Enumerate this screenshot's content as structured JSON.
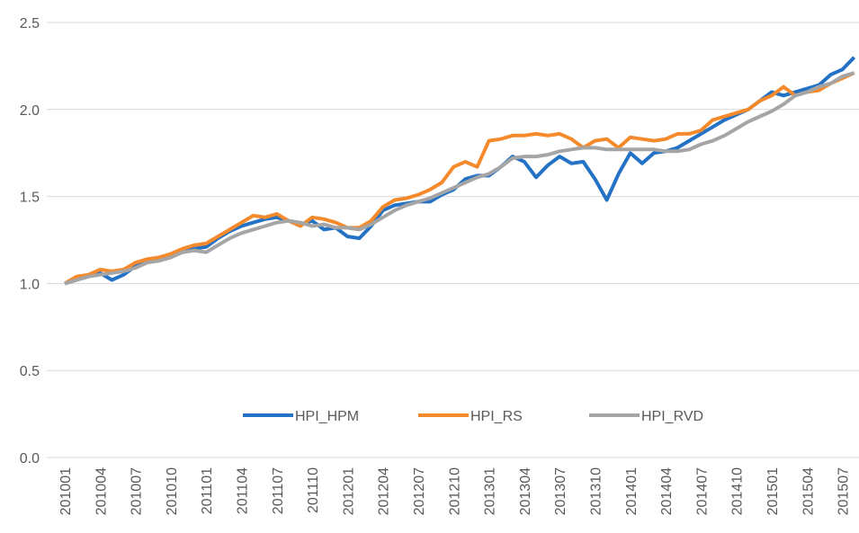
{
  "chart_data": {
    "type": "line",
    "categories": [
      "201001",
      null,
      null,
      "201004",
      null,
      null,
      "201007",
      null,
      null,
      "201010",
      null,
      null,
      "201101",
      null,
      null,
      "201104",
      null,
      null,
      "201107",
      null,
      null,
      "201110",
      null,
      null,
      "201201",
      null,
      null,
      "201204",
      null,
      null,
      "201207",
      null,
      null,
      "201210",
      null,
      null,
      "201301",
      null,
      null,
      "201304",
      null,
      null,
      "201307",
      null,
      null,
      "201310",
      null,
      null,
      "201401",
      null,
      null,
      "201404",
      null,
      null,
      "201407",
      null,
      null,
      "201410",
      null,
      null,
      "201501",
      null,
      null,
      "201504",
      null,
      null,
      "201507",
      null
    ],
    "series": [
      {
        "name": "HPI_HPM",
        "color": "#2372c5",
        "values": [
          1.0,
          1.02,
          1.04,
          1.06,
          1.02,
          1.05,
          1.1,
          1.13,
          1.14,
          1.16,
          1.18,
          1.2,
          1.21,
          1.26,
          1.3,
          1.33,
          1.35,
          1.37,
          1.38,
          1.36,
          1.34,
          1.36,
          1.31,
          1.32,
          1.27,
          1.26,
          1.33,
          1.42,
          1.45,
          1.46,
          1.47,
          1.47,
          1.51,
          1.54,
          1.6,
          1.62,
          1.62,
          1.67,
          1.73,
          1.7,
          1.61,
          1.68,
          1.73,
          1.69,
          1.7,
          1.6,
          1.48,
          1.63,
          1.75,
          1.69,
          1.75,
          1.76,
          1.78,
          1.82,
          1.86,
          1.9,
          1.94,
          1.97,
          2.0,
          2.05,
          2.1,
          2.08,
          2.1,
          2.12,
          2.14,
          2.2,
          2.23,
          2.3
        ]
      },
      {
        "name": "HPI_RS",
        "color": "#f58a2c",
        "values": [
          1.0,
          1.04,
          1.05,
          1.08,
          1.07,
          1.08,
          1.12,
          1.14,
          1.15,
          1.17,
          1.2,
          1.22,
          1.23,
          1.27,
          1.31,
          1.35,
          1.39,
          1.38,
          1.4,
          1.36,
          1.33,
          1.38,
          1.37,
          1.35,
          1.32,
          1.32,
          1.36,
          1.44,
          1.48,
          1.49,
          1.51,
          1.54,
          1.58,
          1.67,
          1.7,
          1.67,
          1.82,
          1.83,
          1.85,
          1.85,
          1.86,
          1.85,
          1.86,
          1.83,
          1.78,
          1.82,
          1.83,
          1.78,
          1.84,
          1.83,
          1.82,
          1.83,
          1.86,
          1.86,
          1.88,
          1.94,
          1.96,
          1.98,
          2.0,
          2.05,
          2.08,
          2.13,
          2.08,
          2.1,
          2.11,
          2.15,
          2.18,
          2.21
        ]
      },
      {
        "name": "HPI_RVD",
        "color": "#a5a5a5",
        "values": [
          1.0,
          1.02,
          1.04,
          1.05,
          1.06,
          1.07,
          1.09,
          1.12,
          1.13,
          1.15,
          1.18,
          1.19,
          1.18,
          1.22,
          1.26,
          1.29,
          1.31,
          1.33,
          1.35,
          1.36,
          1.35,
          1.33,
          1.34,
          1.32,
          1.32,
          1.31,
          1.34,
          1.38,
          1.42,
          1.45,
          1.47,
          1.49,
          1.52,
          1.55,
          1.58,
          1.61,
          1.63,
          1.67,
          1.72,
          1.73,
          1.73,
          1.74,
          1.76,
          1.77,
          1.78,
          1.78,
          1.77,
          1.77,
          1.77,
          1.77,
          1.77,
          1.76,
          1.76,
          1.77,
          1.8,
          1.82,
          1.85,
          1.89,
          1.93,
          1.96,
          1.99,
          2.03,
          2.08,
          2.1,
          2.13,
          2.15,
          2.19,
          2.21
        ]
      }
    ],
    "ylim": [
      0,
      2.5
    ],
    "yticks": [
      {
        "value": 0,
        "label": "0.0"
      },
      0.5,
      {
        "value": 1,
        "label": "1.0"
      },
      1.5,
      {
        "value": 2,
        "label": "2.0"
      },
      2.5
    ],
    "grid": true,
    "legend": "bottom-center"
  }
}
